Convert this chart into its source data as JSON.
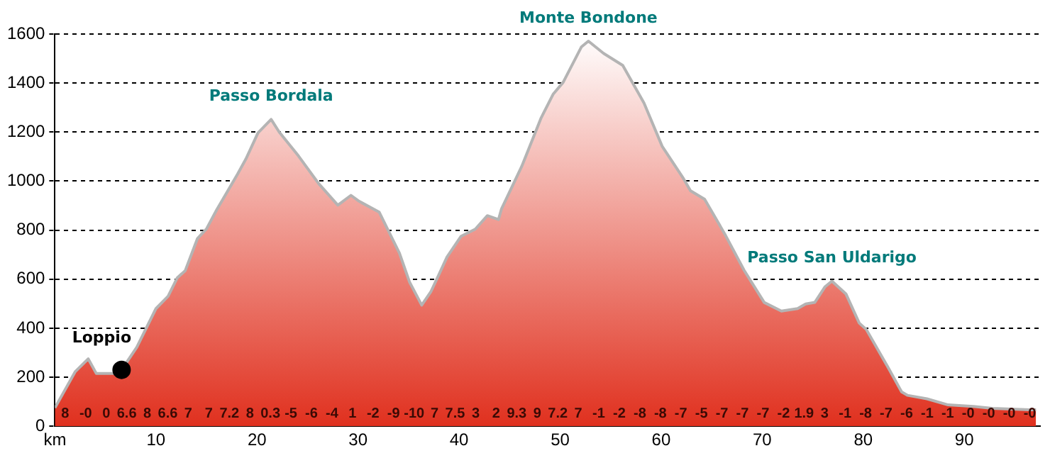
{
  "chart_data": {
    "type": "area",
    "xlim": [
      0,
      97.5
    ],
    "ylim": [
      0,
      1600
    ],
    "xticks": [
      {
        "value": 0,
        "label": "km"
      },
      10,
      20,
      30,
      40,
      50,
      60,
      70,
      80,
      90
    ],
    "yticks": [
      0,
      200,
      400,
      600,
      800,
      1000,
      1200,
      1400,
      1600
    ],
    "grid": "y",
    "legend": false,
    "series": [
      {
        "color": "#e0301e",
        "x": [
          0,
          2,
          3.3,
          4.1,
          6,
          6.6,
          8.1,
          10,
          11.2,
          12.1,
          12.9,
          14.1,
          15,
          16,
          18.1,
          18.9,
          20.1,
          21.4,
          22.2,
          24.1,
          26.1,
          28,
          29.3,
          30.1,
          32.1,
          34.1,
          35.1,
          36.3,
          37.2,
          38.1,
          38.8,
          40.2,
          41.6,
          42.8,
          43.9,
          44.2,
          46.2,
          48.1,
          49.3,
          50.3,
          52.1,
          52.8,
          54.3,
          56.2,
          58.3,
          60.1,
          62.2,
          62.9,
          64.3,
          66.3,
          68.2,
          70.2,
          71.9,
          73.5,
          74.3,
          75.2,
          76.2,
          76.9,
          78.3,
          79.6,
          80.3,
          82.4,
          83.8,
          84.4,
          86.3,
          88.4,
          90.9,
          92.8,
          96.5,
          97.1
        ],
        "values": [
          75,
          222,
          275,
          215,
          215,
          230,
          322,
          480,
          530,
          605,
          635,
          765,
          805,
          882,
          1030,
          1090,
          1197,
          1252,
          1200,
          1103,
          990,
          902,
          942,
          918,
          873,
          706,
          588,
          494,
          548,
          627,
          690,
          775,
          804,
          859,
          843,
          887,
          1060,
          1256,
          1354,
          1403,
          1547,
          1571,
          1521,
          1472,
          1319,
          1142,
          1011,
          961,
          926,
          784,
          637,
          505,
          470,
          480,
          499,
          505,
          568,
          592,
          539,
          421,
          395,
          244,
          140,
          126,
          112,
          87,
          81,
          73,
          67,
          67
        ]
      },
      {
        "type": "scatter",
        "color": "#000000",
        "x": [
          6.6
        ],
        "values": [
          230
        ],
        "marker": "circle"
      }
    ],
    "annotations": [
      {
        "text": "Loppio",
        "x": 6.6,
        "y": 230
      },
      {
        "text": "Passo Bordala",
        "x": 21.4,
        "y": 1252
      },
      {
        "text": "Monte Bondone",
        "x": 52.8,
        "y": 1571
      },
      {
        "text": "Passo San Uldarigo",
        "x": 76.9,
        "y": 592
      },
      "8",
      "-0",
      "0",
      "6.6",
      "8",
      "6.6",
      "7",
      "7",
      "7.2",
      "8",
      "0.3",
      "-5",
      "-6",
      "-4",
      "1",
      "-2",
      "-9",
      "-10",
      "7",
      "7.5",
      "3",
      "2",
      "9.3",
      "9",
      "7.2",
      "7",
      "-1",
      "-2",
      "-8",
      "-8",
      "-7",
      "-5",
      "-7",
      "-7",
      "-7",
      "-2",
      "1.9",
      "3",
      "-1",
      "-8",
      "-7",
      "-6",
      "-1",
      "-1",
      "-0",
      "-0",
      "-0",
      "-0"
    ]
  }
}
